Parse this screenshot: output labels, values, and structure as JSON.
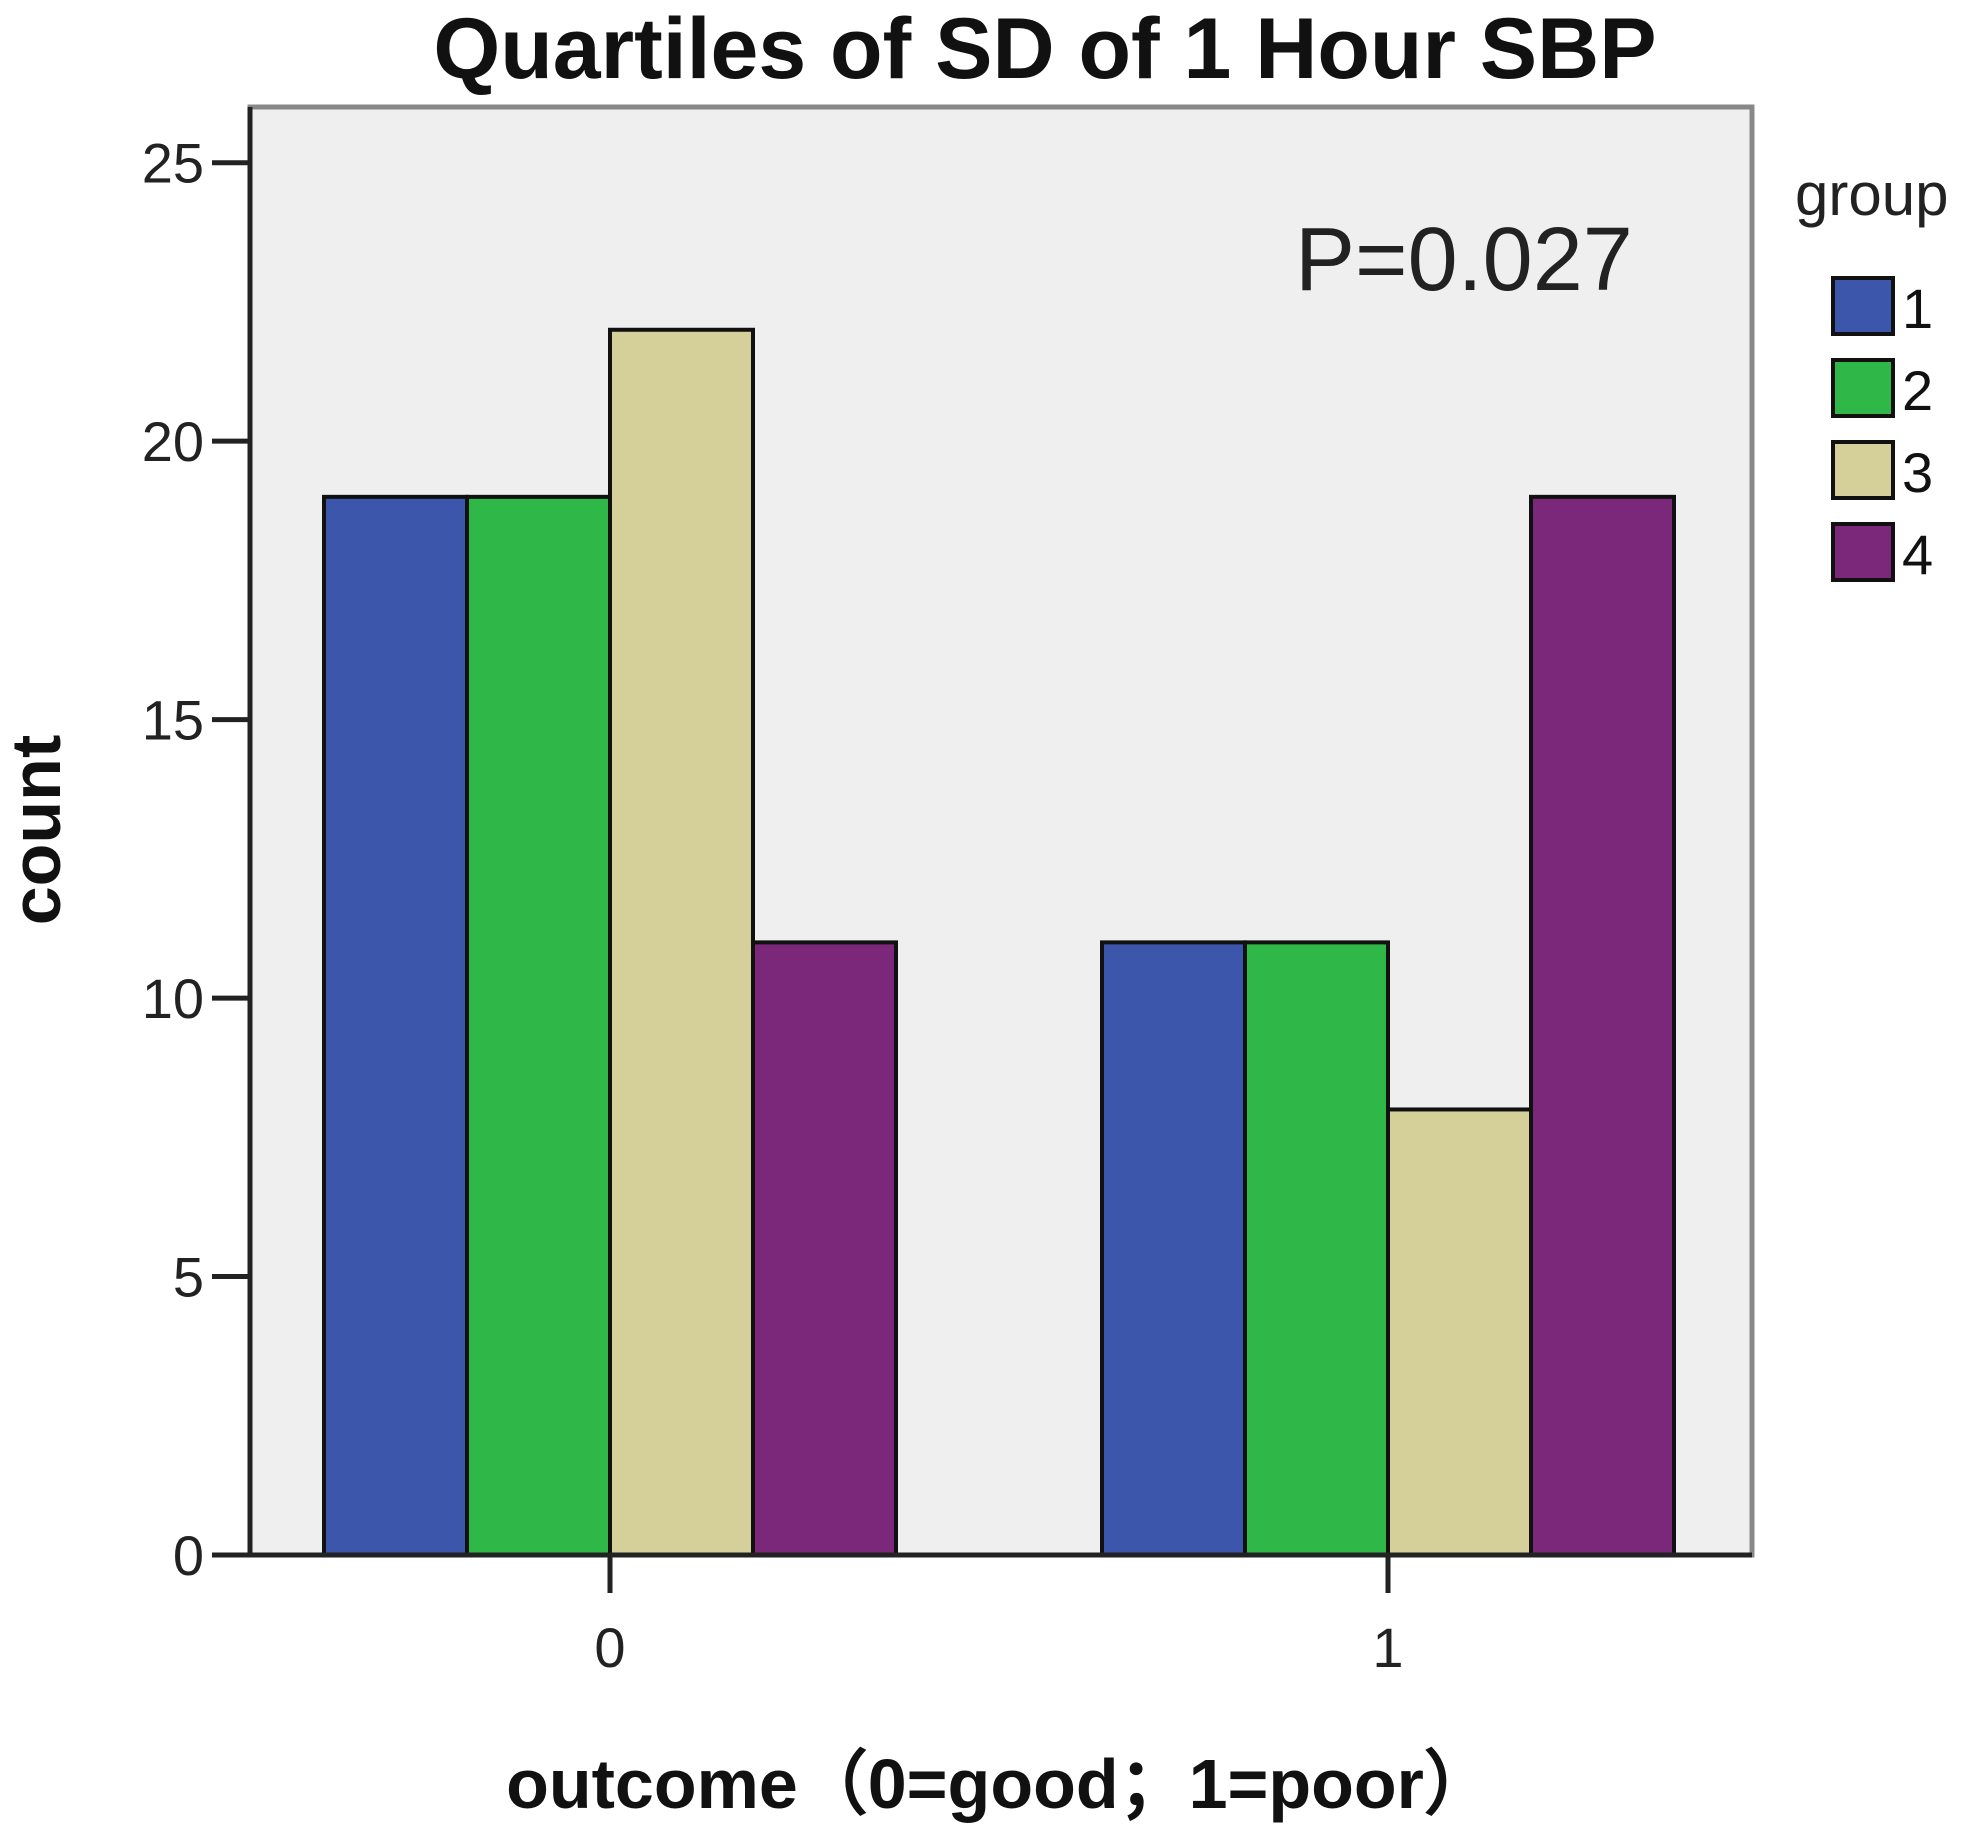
{
  "chart_data": {
    "type": "bar",
    "title": "Quartiles of SD of 1 Hour SBP",
    "xlabel": "outcome（0=good；1=poor）",
    "ylabel": "count",
    "categories": [
      "0",
      "1"
    ],
    "series": [
      {
        "name": "1",
        "values": [
          19,
          11
        ],
        "color": "#3c56ac"
      },
      {
        "name": "2",
        "values": [
          19,
          11
        ],
        "color": "#2fb848"
      },
      {
        "name": "3",
        "values": [
          22,
          8
        ],
        "color": "#d5cf9a"
      },
      {
        "name": "4",
        "values": [
          11,
          19
        ],
        "color": "#7b287b"
      }
    ],
    "ylim": [
      0,
      26
    ],
    "yticks": [
      0,
      5,
      10,
      15,
      20,
      25
    ],
    "legend_title": "group",
    "legend_position": "right",
    "annotation": "P=0.027",
    "grid": false,
    "plot_background": "#efefef"
  }
}
